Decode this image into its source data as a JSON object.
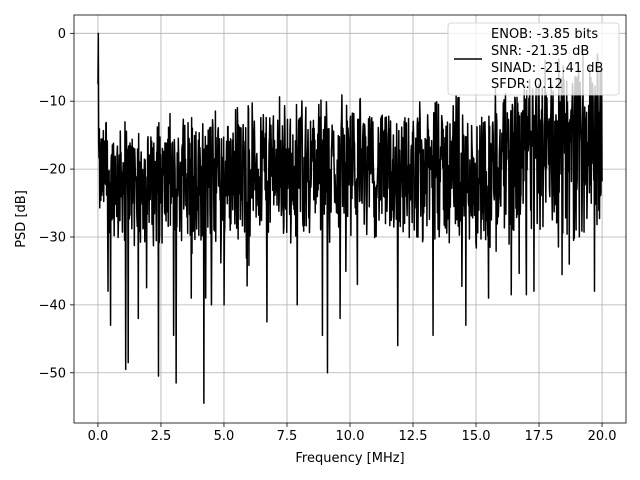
{
  "chart_data": {
    "type": "line",
    "xlabel": "Frequency [MHz]",
    "ylabel": "PSD [dB]",
    "xlim": [
      -0.95,
      20.95
    ],
    "ylim": [
      -57.4,
      2.7
    ],
    "grid": true,
    "legend_position": "top-right",
    "x_ticks": [
      0,
      2.5,
      5,
      7.5,
      10,
      12.5,
      15,
      17.5,
      20
    ],
    "x_tick_labels": [
      "0.0",
      "2.5",
      "5.0",
      "7.5",
      "10.0",
      "12.5",
      "15.0",
      "17.5",
      "20.0"
    ],
    "y_ticks": [
      0,
      -10,
      -20,
      -30,
      -40,
      -50
    ],
    "y_tick_labels": [
      "0",
      "−10",
      "−20",
      "−30",
      "−40",
      "−50"
    ],
    "series": [
      {
        "color": "#000000",
        "label_lines": [
          "ENOB: -3.85 bits",
          "SNR: -21.35 dB",
          "SINAD: -21.41 dB",
          "SFDR: 0.12"
        ],
        "x_start": 0.0,
        "x_end": 20.0,
        "peak": {
          "x": 0.0,
          "y": 0.0
        },
        "envelope": [
          {
            "x": 0.5,
            "upper": -14,
            "lower": -30
          },
          {
            "x": 2.5,
            "upper": -15,
            "lower": -32
          },
          {
            "x": 5.0,
            "upper": -13,
            "lower": -31
          },
          {
            "x": 7.5,
            "upper": -12,
            "lower": -30
          },
          {
            "x": 10.0,
            "upper": -12,
            "lower": -30
          },
          {
            "x": 12.5,
            "upper": -12,
            "lower": -31
          },
          {
            "x": 15.0,
            "upper": -12,
            "lower": -32
          },
          {
            "x": 17.5,
            "upper": -7,
            "lower": -31
          },
          {
            "x": 20.0,
            "upper": -5,
            "lower": -31
          }
        ],
        "dips": [
          {
            "x": 0.4,
            "y": -38
          },
          {
            "x": 0.5,
            "y": -43
          },
          {
            "x": 1.1,
            "y": -49.5
          },
          {
            "x": 1.2,
            "y": -48.5
          },
          {
            "x": 1.6,
            "y": -42
          },
          {
            "x": 2.4,
            "y": -50.5
          },
          {
            "x": 3.1,
            "y": -51.5
          },
          {
            "x": 3.0,
            "y": -44.5
          },
          {
            "x": 3.7,
            "y": -39
          },
          {
            "x": 4.2,
            "y": -54.5
          },
          {
            "x": 4.5,
            "y": -40
          },
          {
            "x": 5.0,
            "y": -40
          },
          {
            "x": 6.7,
            "y": -42.5
          },
          {
            "x": 7.9,
            "y": -40
          },
          {
            "x": 8.9,
            "y": -44.5
          },
          {
            "x": 9.1,
            "y": -50
          },
          {
            "x": 9.6,
            "y": -42
          },
          {
            "x": 10.3,
            "y": -37
          },
          {
            "x": 11.9,
            "y": -46
          },
          {
            "x": 13.3,
            "y": -44.5
          },
          {
            "x": 14.6,
            "y": -43
          },
          {
            "x": 15.5,
            "y": -39
          },
          {
            "x": 16.4,
            "y": -38.5
          },
          {
            "x": 17.3,
            "y": -38
          },
          {
            "x": 17.0,
            "y": -38.5
          },
          {
            "x": 18.7,
            "y": -34
          },
          {
            "x": 19.7,
            "y": -38
          }
        ]
      }
    ]
  }
}
